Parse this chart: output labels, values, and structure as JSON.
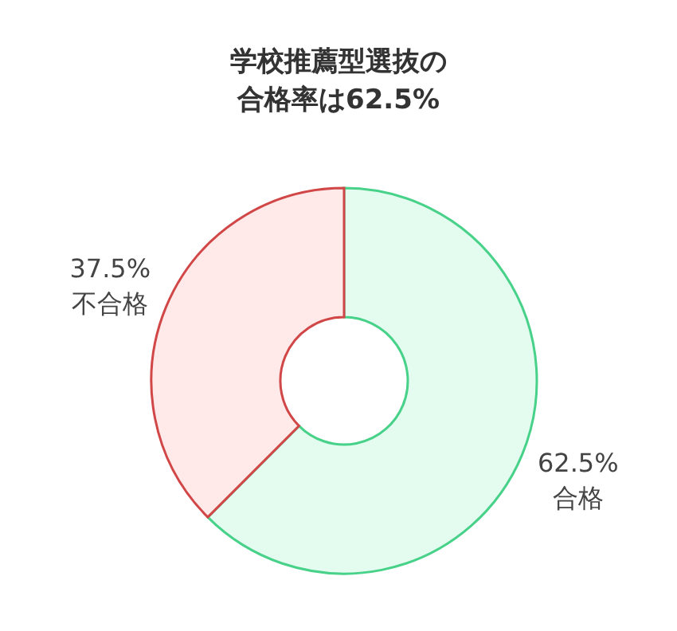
{
  "chart_data": {
    "type": "donut",
    "title": "学校推薦型選抜の合格率は62.5%",
    "categories": [
      "合格",
      "不合格"
    ],
    "values": [
      62.5,
      37.5
    ],
    "value_labels": [
      "62.5%",
      "37.5%"
    ],
    "colors": [
      "#e3fcef",
      "#ffe9e9"
    ]
  }
}
